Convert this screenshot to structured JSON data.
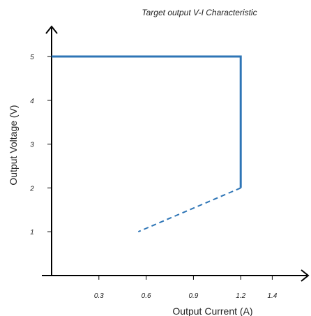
{
  "chart_data": {
    "type": "line",
    "title": "Target output V-I Characteristic",
    "xlabel": "Output Current (A)",
    "ylabel": "Output Voltage (V)",
    "xlim": [
      0,
      1.5
    ],
    "ylim": [
      0,
      5.5
    ],
    "xticks": [
      0.3,
      0.6,
      0.9,
      1.2,
      1.4
    ],
    "yticks": [
      1,
      2,
      3,
      4,
      5
    ],
    "grid": false,
    "series": [
      {
        "style": "solid",
        "color": "#2E75B6",
        "x": [
          0,
          1.2,
          1.2
        ],
        "y": [
          5,
          5,
          2
        ]
      },
      {
        "style": "dashed",
        "color": "#2E75B6",
        "x": [
          1.2,
          0.55
        ],
        "y": [
          2,
          1
        ]
      }
    ]
  }
}
